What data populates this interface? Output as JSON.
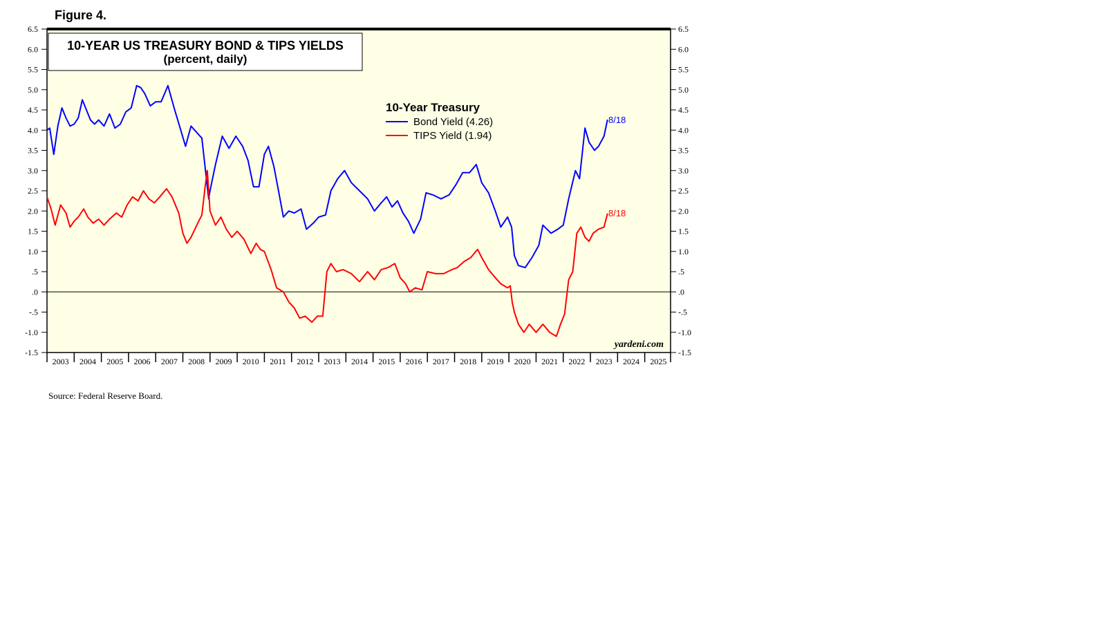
{
  "figure_label": "Figure 4.",
  "source": "Source: Federal Reserve Board.",
  "watermark": "yardeni.com",
  "chart_data": {
    "type": "line",
    "title": "10-YEAR US TREASURY BOND & TIPS YIELDS",
    "subtitle": "(percent, daily)",
    "legend_title": "10-Year Treasury",
    "legend_position": "top-center",
    "xlim": [
      2003,
      2025.95
    ],
    "ylim": [
      -1.5,
      6.5
    ],
    "x_tick_labels": [
      "2003",
      "2004",
      "2005",
      "2006",
      "2007",
      "2008",
      "2009",
      "2010",
      "2011",
      "2012",
      "2013",
      "2014",
      "2015",
      "2016",
      "2017",
      "2018",
      "2019",
      "2020",
      "2021",
      "2022",
      "2023",
      "2024",
      "2025"
    ],
    "y_ticks": [
      6.5,
      6.0,
      5.5,
      5.0,
      4.5,
      4.0,
      3.5,
      3.0,
      2.5,
      2.0,
      1.5,
      1.0,
      0.5,
      0.0,
      -0.5,
      -1.0,
      -1.5
    ],
    "y_tick_labels": [
      "6.5",
      "6.0",
      "5.5",
      "5.0",
      "4.5",
      "4.0",
      "3.5",
      "3.0",
      "2.5",
      "2.0",
      "1.5",
      "1.0",
      ".5",
      ".0",
      "-.5",
      "-1.0",
      "-1.5"
    ],
    "zero_line": 0,
    "background_color": "#ffffe6",
    "series": [
      {
        "name": "Bond Yield (4.26)",
        "color": "#0000ff",
        "end_label": "8/18",
        "x": [
          2003.0,
          2003.1,
          2003.25,
          2003.4,
          2003.55,
          2003.7,
          2003.85,
          2004.0,
          2004.15,
          2004.3,
          2004.45,
          2004.6,
          2004.75,
          2004.9,
          2005.1,
          2005.3,
          2005.5,
          2005.7,
          2005.9,
          2006.1,
          2006.3,
          2006.45,
          2006.6,
          2006.8,
          2007.0,
          2007.2,
          2007.45,
          2007.7,
          2007.9,
          2008.1,
          2008.3,
          2008.5,
          2008.7,
          2008.85,
          2008.95,
          2009.0,
          2009.2,
          2009.45,
          2009.7,
          2009.95,
          2010.2,
          2010.4,
          2010.6,
          2010.8,
          2011.0,
          2011.15,
          2011.35,
          2011.55,
          2011.7,
          2011.9,
          2012.1,
          2012.35,
          2012.55,
          2012.8,
          2013.0,
          2013.25,
          2013.45,
          2013.7,
          2013.95,
          2014.2,
          2014.5,
          2014.8,
          2015.05,
          2015.3,
          2015.5,
          2015.7,
          2015.9,
          2016.1,
          2016.3,
          2016.5,
          2016.75,
          2016.95,
          2017.2,
          2017.5,
          2017.8,
          2018.05,
          2018.3,
          2018.55,
          2018.8,
          2019.0,
          2019.25,
          2019.5,
          2019.7,
          2019.95,
          2020.1,
          2020.2,
          2020.35,
          2020.6,
          2020.85,
          2021.1,
          2021.25,
          2021.55,
          2021.8,
          2022.0,
          2022.2,
          2022.45,
          2022.6,
          2022.8,
          2022.95,
          2023.15,
          2023.3,
          2023.5,
          2023.63
        ],
        "y": [
          4.0,
          4.05,
          3.4,
          4.1,
          4.55,
          4.3,
          4.1,
          4.15,
          4.3,
          4.75,
          4.5,
          4.25,
          4.15,
          4.25,
          4.1,
          4.4,
          4.05,
          4.15,
          4.45,
          4.55,
          5.1,
          5.05,
          4.9,
          4.6,
          4.7,
          4.7,
          5.1,
          4.5,
          4.05,
          3.6,
          4.1,
          3.95,
          3.8,
          2.9,
          2.3,
          2.5,
          3.15,
          3.85,
          3.55,
          3.85,
          3.6,
          3.25,
          2.6,
          2.6,
          3.4,
          3.6,
          3.1,
          2.4,
          1.85,
          2.0,
          1.95,
          2.05,
          1.55,
          1.7,
          1.85,
          1.9,
          2.5,
          2.8,
          3.0,
          2.7,
          2.5,
          2.3,
          2.0,
          2.2,
          2.35,
          2.1,
          2.25,
          1.95,
          1.75,
          1.45,
          1.8,
          2.45,
          2.4,
          2.3,
          2.4,
          2.65,
          2.95,
          2.95,
          3.15,
          2.7,
          2.45,
          2.0,
          1.6,
          1.85,
          1.6,
          0.9,
          0.65,
          0.6,
          0.85,
          1.15,
          1.65,
          1.45,
          1.55,
          1.65,
          2.3,
          3.0,
          2.8,
          4.05,
          3.7,
          3.5,
          3.6,
          3.85,
          4.26
        ]
      },
      {
        "name": "TIPS Yield (1.94)",
        "color": "#ff0000",
        "end_label": "8/18",
        "x": [
          2003.0,
          2003.15,
          2003.3,
          2003.5,
          2003.7,
          2003.85,
          2004.0,
          2004.15,
          2004.35,
          2004.5,
          2004.7,
          2004.9,
          2005.1,
          2005.3,
          2005.55,
          2005.75,
          2005.95,
          2006.15,
          2006.35,
          2006.55,
          2006.75,
          2006.95,
          2007.15,
          2007.4,
          2007.6,
          2007.85,
          2008.0,
          2008.15,
          2008.3,
          2008.55,
          2008.7,
          2008.82,
          2008.9,
          2009.0,
          2009.2,
          2009.4,
          2009.6,
          2009.8,
          2010.0,
          2010.25,
          2010.5,
          2010.7,
          2010.85,
          2011.0,
          2011.25,
          2011.45,
          2011.7,
          2011.9,
          2012.1,
          2012.3,
          2012.5,
          2012.75,
          2012.95,
          2013.15,
          2013.3,
          2013.45,
          2013.65,
          2013.9,
          2014.2,
          2014.5,
          2014.8,
          2015.05,
          2015.3,
          2015.55,
          2015.8,
          2016.0,
          2016.2,
          2016.35,
          2016.55,
          2016.8,
          2017.0,
          2017.3,
          2017.6,
          2017.9,
          2018.1,
          2018.35,
          2018.6,
          2018.85,
          2019.0,
          2019.25,
          2019.5,
          2019.7,
          2019.95,
          2020.05,
          2020.12,
          2020.2,
          2020.35,
          2020.55,
          2020.75,
          2021.0,
          2021.25,
          2021.5,
          2021.75,
          2021.9,
          2022.05,
          2022.2,
          2022.35,
          2022.5,
          2022.65,
          2022.8,
          2022.95,
          2023.1,
          2023.3,
          2023.5,
          2023.63
        ],
        "y": [
          2.35,
          2.05,
          1.65,
          2.15,
          1.95,
          1.6,
          1.75,
          1.85,
          2.05,
          1.85,
          1.7,
          1.8,
          1.65,
          1.8,
          1.95,
          1.85,
          2.15,
          2.35,
          2.25,
          2.5,
          2.3,
          2.2,
          2.35,
          2.55,
          2.35,
          1.95,
          1.45,
          1.2,
          1.35,
          1.7,
          1.9,
          2.6,
          3.0,
          2.0,
          1.65,
          1.85,
          1.55,
          1.35,
          1.5,
          1.3,
          0.95,
          1.2,
          1.05,
          1.0,
          0.55,
          0.1,
          0.0,
          -0.25,
          -0.4,
          -0.65,
          -0.6,
          -0.75,
          -0.6,
          -0.6,
          0.5,
          0.7,
          0.5,
          0.55,
          0.45,
          0.25,
          0.5,
          0.3,
          0.55,
          0.6,
          0.7,
          0.35,
          0.2,
          0.0,
          0.1,
          0.05,
          0.5,
          0.45,
          0.45,
          0.55,
          0.6,
          0.75,
          0.85,
          1.05,
          0.85,
          0.55,
          0.35,
          0.2,
          0.1,
          0.15,
          -0.25,
          -0.5,
          -0.8,
          -1.0,
          -0.8,
          -1.0,
          -0.8,
          -1.0,
          -1.1,
          -0.8,
          -0.55,
          0.3,
          0.5,
          1.45,
          1.6,
          1.35,
          1.25,
          1.45,
          1.55,
          1.6,
          1.94
        ]
      }
    ]
  }
}
